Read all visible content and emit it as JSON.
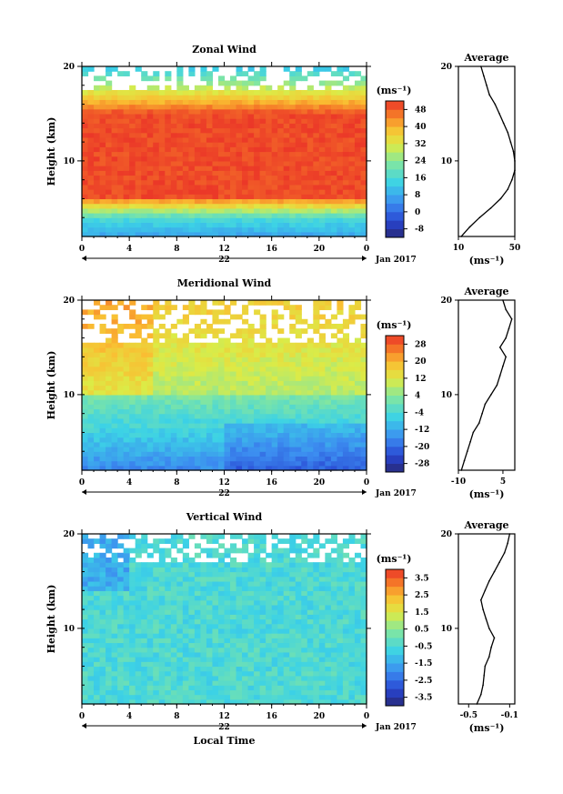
{
  "chart_data": [
    {
      "type": "heatmap",
      "title": "Zonal Wind",
      "ylabel": "Height (km)",
      "xlabel": "",
      "xlim": [
        0,
        24
      ],
      "ylim": [
        2,
        20
      ],
      "x_ticks": [
        "0",
        "4",
        "8",
        "12",
        "16",
        "20",
        "0"
      ],
      "y_ticks": [
        "10",
        "20"
      ],
      "date_label": "22",
      "month_label": "Jan 2017",
      "colorbar": {
        "unit": "(ms⁻¹)",
        "ticks": [
          "-8",
          "0",
          "8",
          "16",
          "24",
          "32",
          "40",
          "48"
        ],
        "min": -12,
        "max": 52
      },
      "average_profile": {
        "title": "Average",
        "xlabel": "(ms⁻¹)",
        "x_ticks": [
          "10",
          "50"
        ],
        "xlim": [
          10,
          50
        ],
        "y_ticks": [
          "10",
          "20"
        ],
        "heights": [
          2,
          3,
          4,
          5,
          6,
          7,
          8,
          9,
          10,
          11,
          12,
          13,
          14,
          15,
          16,
          17,
          18,
          19,
          20
        ],
        "values": [
          12,
          18,
          25,
          33,
          40,
          45,
          48,
          50,
          50,
          49,
          47,
          45,
          42,
          39,
          36,
          32,
          30,
          28,
          26
        ]
      }
    },
    {
      "type": "heatmap",
      "title": "Meridional Wind",
      "ylabel": "Height (km)",
      "xlabel": "",
      "xlim": [
        0,
        24
      ],
      "ylim": [
        2,
        20
      ],
      "x_ticks": [
        "0",
        "4",
        "8",
        "12",
        "16",
        "20",
        "0"
      ],
      "y_ticks": [
        "10",
        "20"
      ],
      "date_label": "22",
      "month_label": "Jan 2017",
      "colorbar": {
        "unit": "(ms⁻¹)",
        "ticks": [
          "-28",
          "-20",
          "-12",
          "-4",
          "4",
          "12",
          "20",
          "28"
        ],
        "min": -32,
        "max": 32
      },
      "average_profile": {
        "title": "Average",
        "xlabel": "(ms⁻¹)",
        "x_ticks": [
          "-10",
          "5"
        ],
        "xlim": [
          -10,
          9
        ],
        "y_ticks": [
          "10",
          "20"
        ],
        "heights": [
          2,
          3,
          4,
          5,
          6,
          7,
          8,
          9,
          10,
          11,
          12,
          13,
          14,
          15,
          16,
          17,
          18,
          19,
          20
        ],
        "values": [
          -9,
          -8,
          -7,
          -6,
          -5,
          -3,
          -2,
          -1,
          1,
          3,
          4,
          5,
          6,
          4,
          6,
          7,
          8,
          6,
          5
        ]
      }
    },
    {
      "type": "heatmap",
      "title": "Vertical Wind",
      "ylabel": "Height (km)",
      "xlabel": "Local Time",
      "xlim": [
        0,
        24
      ],
      "ylim": [
        2,
        20
      ],
      "x_ticks": [
        "0",
        "4",
        "8",
        "12",
        "16",
        "20",
        "0"
      ],
      "y_ticks": [
        "10",
        "20"
      ],
      "date_label": "22",
      "month_label": "Jan 2017",
      "colorbar": {
        "unit": "(ms⁻¹)",
        "ticks": [
          "-3.5",
          "-2.5",
          "-1.5",
          "-0.5",
          "0.5",
          "1.5",
          "2.5",
          "3.5"
        ],
        "min": -4,
        "max": 4
      },
      "average_profile": {
        "title": "Average",
        "xlabel": "(ms⁻¹)",
        "x_ticks": [
          "-0.5",
          "-0.1"
        ],
        "xlim": [
          -0.6,
          -0.05
        ],
        "y_ticks": [
          "10",
          "20"
        ],
        "heights": [
          2,
          3,
          4,
          5,
          6,
          7,
          8,
          9,
          10,
          11,
          12,
          13,
          14,
          15,
          16,
          17,
          18,
          19,
          20
        ],
        "values": [
          -0.42,
          -0.38,
          -0.36,
          -0.35,
          -0.34,
          -0.3,
          -0.28,
          -0.25,
          -0.3,
          -0.33,
          -0.36,
          -0.38,
          -0.34,
          -0.3,
          -0.25,
          -0.2,
          -0.15,
          -0.12,
          -0.1
        ]
      }
    }
  ]
}
